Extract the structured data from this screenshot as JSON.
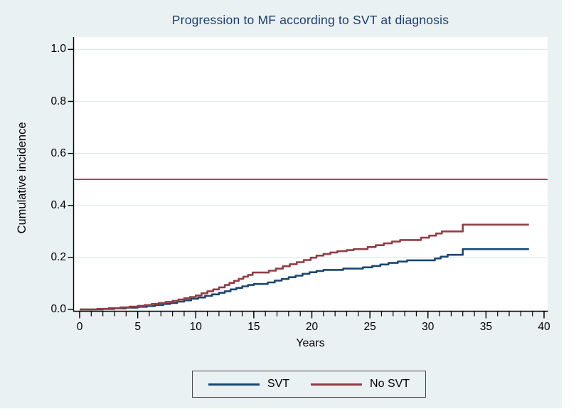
{
  "title": "Progression to MF according to SVT at diagnosis",
  "colors": {
    "canvas_bg": "#eaf1f3",
    "plot_bg": "#ffffff",
    "title_text": "#1c3f6e",
    "grid": "#dfeaee",
    "axis": "#000000",
    "reference_line": "#d01c50",
    "svt_line": "#1a476f",
    "no_svt_line": "#943c44",
    "legend_border": "#454545"
  },
  "chart_data": {
    "type": "line",
    "subtype": "step",
    "title": "Progression to MF according to SVT at diagnosis",
    "xlabel": "Years",
    "ylabel": "Cumulative incidence",
    "xlim": [
      0,
      40
    ],
    "ylim": [
      0,
      1
    ],
    "x_ticks": [
      0,
      5,
      10,
      15,
      20,
      25,
      30,
      35,
      40
    ],
    "x_minor_tick_interval": 1,
    "y_tick_labels": [
      "0.0",
      "0.2",
      "0.4",
      "0.6",
      "0.8",
      "1.0"
    ],
    "grid": "horizontal",
    "legend_position": "bottom",
    "reference_line_y": 0.5,
    "series": [
      {
        "name": "SVT",
        "color": "#1a476f",
        "points": [
          [
            0,
            0
          ],
          [
            2,
            0.002
          ],
          [
            3,
            0.004
          ],
          [
            4,
            0.007
          ],
          [
            5,
            0.01
          ],
          [
            5.8,
            0.013
          ],
          [
            6.5,
            0.017
          ],
          [
            7.2,
            0.021
          ],
          [
            7.8,
            0.025
          ],
          [
            8.4,
            0.03
          ],
          [
            9,
            0.035
          ],
          [
            9.6,
            0.041
          ],
          [
            10.2,
            0.046
          ],
          [
            10.8,
            0.052
          ],
          [
            11.4,
            0.058
          ],
          [
            12,
            0.064
          ],
          [
            12.5,
            0.07
          ],
          [
            13,
            0.077
          ],
          [
            13.5,
            0.083
          ],
          [
            14,
            0.089
          ],
          [
            14.5,
            0.094
          ],
          [
            15,
            0.098
          ],
          [
            16.2,
            0.104
          ],
          [
            16.8,
            0.111
          ],
          [
            17.4,
            0.117
          ],
          [
            18,
            0.124
          ],
          [
            18.6,
            0.13
          ],
          [
            19.2,
            0.137
          ],
          [
            19.8,
            0.143
          ],
          [
            20.4,
            0.148
          ],
          [
            21,
            0.152
          ],
          [
            22.7,
            0.157
          ],
          [
            24.4,
            0.162
          ],
          [
            25.2,
            0.167
          ],
          [
            25.9,
            0.173
          ],
          [
            26.6,
            0.179
          ],
          [
            27.4,
            0.184
          ],
          [
            28.2,
            0.189
          ],
          [
            30.6,
            0.196
          ],
          [
            31.1,
            0.203
          ],
          [
            31.7,
            0.21
          ],
          [
            33,
            0.232
          ],
          [
            38.7,
            0.232
          ]
        ]
      },
      {
        "name": "No SVT",
        "color": "#943c44",
        "points": [
          [
            0,
            0
          ],
          [
            1.5,
            0.002
          ],
          [
            2.5,
            0.005
          ],
          [
            3.5,
            0.008
          ],
          [
            4.3,
            0.011
          ],
          [
            5,
            0.014
          ],
          [
            5.6,
            0.017
          ],
          [
            6.2,
            0.021
          ],
          [
            6.8,
            0.025
          ],
          [
            7.4,
            0.029
          ],
          [
            8,
            0.033
          ],
          [
            8.5,
            0.038
          ],
          [
            9,
            0.043
          ],
          [
            9.5,
            0.048
          ],
          [
            10,
            0.054
          ],
          [
            10.5,
            0.062
          ],
          [
            11,
            0.07
          ],
          [
            11.5,
            0.077
          ],
          [
            12,
            0.085
          ],
          [
            12.5,
            0.094
          ],
          [
            12.9,
            0.102
          ],
          [
            13.3,
            0.11
          ],
          [
            13.7,
            0.118
          ],
          [
            14.1,
            0.126
          ],
          [
            14.5,
            0.133
          ],
          [
            14.9,
            0.142
          ],
          [
            16.3,
            0.149
          ],
          [
            16.9,
            0.157
          ],
          [
            17.5,
            0.166
          ],
          [
            18.1,
            0.174
          ],
          [
            18.7,
            0.182
          ],
          [
            19.3,
            0.19
          ],
          [
            19.9,
            0.199
          ],
          [
            20.4,
            0.207
          ],
          [
            21,
            0.213
          ],
          [
            21.6,
            0.219
          ],
          [
            22.2,
            0.224
          ],
          [
            23,
            0.228
          ],
          [
            23.6,
            0.232
          ],
          [
            24.8,
            0.24
          ],
          [
            25.5,
            0.247
          ],
          [
            26.2,
            0.254
          ],
          [
            26.9,
            0.261
          ],
          [
            27.6,
            0.267
          ],
          [
            29.4,
            0.276
          ],
          [
            30.1,
            0.284
          ],
          [
            30.7,
            0.292
          ],
          [
            31.2,
            0.3
          ],
          [
            33,
            0.326
          ],
          [
            38.7,
            0.326
          ]
        ]
      }
    ]
  }
}
